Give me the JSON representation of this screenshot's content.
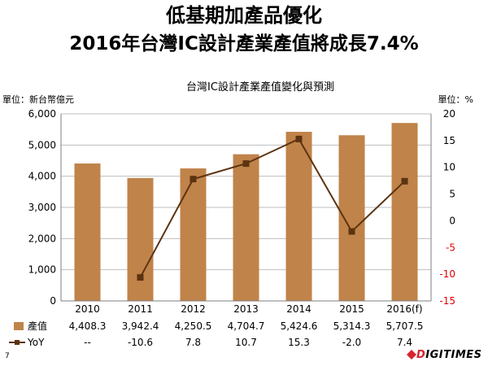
{
  "slide": {
    "title_line1": "低基期加產品優化",
    "title_line2": "2016年台灣IC設計產業產值將成長7.4%",
    "page_number": "7",
    "brand_prefix": "D",
    "brand_rest": "IGITIMES"
  },
  "chart_data": {
    "type": "bar",
    "title": "台灣IC設計產業產值變化與預測",
    "left_unit_label": "單位：新台幣億元",
    "right_unit_label": "單位：%",
    "categories": [
      "2010",
      "2011",
      "2012",
      "2013",
      "2014",
      "2015",
      "2016(f)"
    ],
    "series": [
      {
        "name": "產值",
        "type": "bar",
        "axis": "left",
        "color": "#c0834a",
        "values": [
          4408.3,
          3942.4,
          4250.5,
          4704.7,
          5424.6,
          5314.3,
          5707.5
        ],
        "labels": [
          "4,408.3",
          "3,942.4",
          "4,250.5",
          "4,704.7",
          "5,424.6",
          "5,314.3",
          "5,707.5"
        ]
      },
      {
        "name": "YoY",
        "type": "line",
        "axis": "right",
        "color": "#5c3310",
        "values": [
          null,
          -10.6,
          7.8,
          10.7,
          15.3,
          -2.0,
          7.4
        ],
        "labels": [
          "--",
          "-10.6",
          "7.8",
          "10.7",
          "15.3",
          "-2.0",
          "7.4"
        ]
      }
    ],
    "y_left": {
      "min": 0,
      "max": 6000,
      "ticks": [
        0,
        1000,
        2000,
        3000,
        4000,
        5000,
        6000
      ],
      "tick_labels": [
        "0",
        "1,000",
        "2,000",
        "3,000",
        "4,000",
        "5,000",
        "6,000"
      ]
    },
    "y_right": {
      "min": -15,
      "max": 20,
      "ticks": [
        -15,
        -10,
        -5,
        0,
        5,
        10,
        15,
        20
      ],
      "tick_labels": [
        "-15",
        "-10",
        "-5",
        "0",
        "5",
        "10",
        "15",
        "20"
      ],
      "negative_color": "#e00000"
    },
    "grid": true
  }
}
